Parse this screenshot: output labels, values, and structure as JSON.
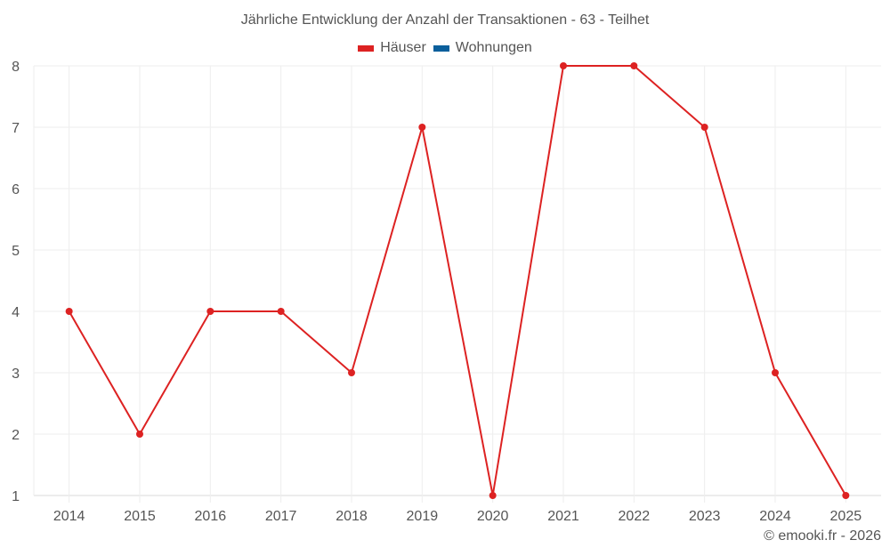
{
  "chart": {
    "title": "Jährliche Entwicklung der Anzahl der Transaktionen - 63 - Teilhet",
    "footer": "© emooki.fr - 2026"
  },
  "legend": [
    {
      "label": "Häuser",
      "color": "#dd2222"
    },
    {
      "label": "Wohnungen",
      "color": "#0b5f9c"
    }
  ],
  "chart_data": {
    "type": "line",
    "title": "Jährliche Entwicklung der Anzahl der Transaktionen - 63 - Teilhet",
    "xlabel": "",
    "ylabel": "",
    "categories": [
      "2014",
      "2015",
      "2016",
      "2017",
      "2018",
      "2019",
      "2020",
      "2021",
      "2022",
      "2023",
      "2024",
      "2025"
    ],
    "series": [
      {
        "name": "Häuser",
        "color": "#dd2222",
        "values": [
          4,
          2,
          4,
          4,
          3,
          7,
          1,
          8,
          8,
          7,
          3,
          1
        ]
      },
      {
        "name": "Wohnungen",
        "color": "#0b5f9c",
        "values": []
      }
    ],
    "ylim": [
      1,
      8
    ],
    "yticks": [
      1,
      2,
      3,
      4,
      5,
      6,
      7,
      8
    ],
    "grid": true,
    "legend_position": "top"
  }
}
